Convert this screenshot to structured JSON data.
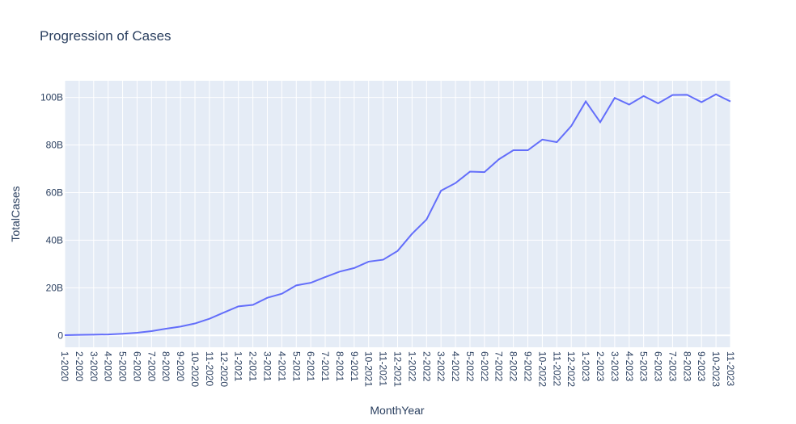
{
  "chart_data": {
    "type": "line",
    "title": "Progression of Cases",
    "xlabel": "MonthYear",
    "ylabel": "TotalCases",
    "ylim": [
      -5,
      107
    ],
    "yticks": [
      0,
      20,
      40,
      60,
      80,
      100
    ],
    "ytick_labels": [
      "0",
      "20B",
      "40B",
      "60B",
      "80B",
      "100B"
    ],
    "grid": true,
    "legend": "none",
    "line_color": "#636efa",
    "plot_bg": "#e5ecf6",
    "x": [
      "1-2020",
      "2-2020",
      "3-2020",
      "4-2020",
      "5-2020",
      "6-2020",
      "7-2020",
      "8-2020",
      "9-2020",
      "10-2020",
      "11-2020",
      "12-2020",
      "1-2021",
      "2-2021",
      "3-2021",
      "4-2021",
      "5-2021",
      "6-2021",
      "7-2021",
      "8-2021",
      "9-2021",
      "10-2021",
      "11-2021",
      "12-2021",
      "1-2022",
      "2-2022",
      "3-2022",
      "4-2022",
      "5-2022",
      "6-2022",
      "7-2022",
      "8-2022",
      "9-2022",
      "10-2022",
      "11-2022",
      "12-2022",
      "1-2023",
      "2-2023",
      "3-2023",
      "4-2023",
      "5-2023",
      "6-2023",
      "7-2023",
      "8-2023",
      "9-2023",
      "10-2023",
      "11-2023"
    ],
    "series": [
      {
        "values": [
          0.1,
          0.2,
          0.3,
          0.4,
          0.7,
          1.1,
          1.8,
          2.8,
          3.7,
          5.0,
          7.0,
          9.6,
          12.2,
          12.8,
          15.8,
          17.5,
          21.0,
          22.1,
          24.5,
          26.8,
          28.3,
          31.0,
          31.8,
          35.5,
          42.7,
          48.7,
          60.8,
          64.0,
          68.8,
          68.6,
          74.0,
          77.8,
          77.8,
          82.3,
          81.2,
          88.0,
          98.3,
          89.6,
          99.8,
          97.0,
          100.6,
          97.5,
          101.0,
          101.1,
          98.0,
          101.3,
          98.3
        ]
      }
    ]
  }
}
